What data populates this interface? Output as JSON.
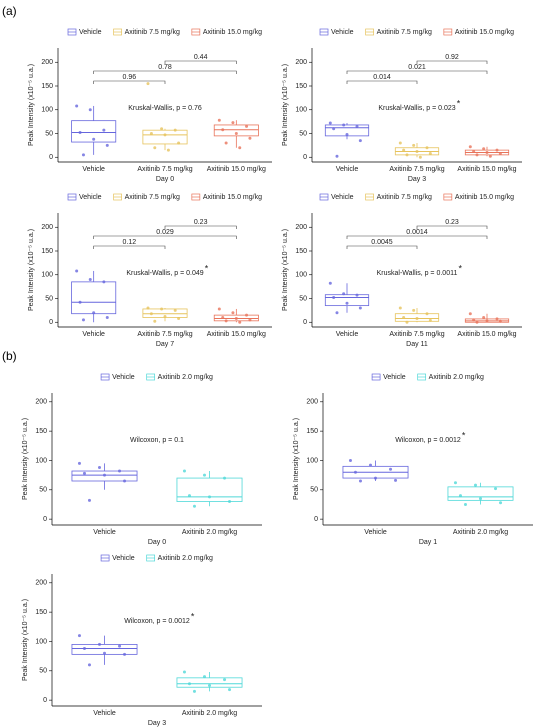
{
  "figure": {
    "parts": [
      "(a)",
      "(b)"
    ]
  },
  "chart_data": [
    {
      "type": "box",
      "x_label": "Day 0",
      "y_label": "Peak Intensity (x10⁻⁵ u.a.)",
      "ylim": [
        -10,
        230
      ],
      "yticks": [
        0,
        50,
        100,
        150,
        200
      ],
      "series": [
        {
          "name": "Vehicle",
          "color": "#6666dd",
          "box": [
            5,
            32,
            52,
            77,
            108
          ],
          "points": [
            108,
            100,
            57,
            52,
            38,
            25,
            5
          ]
        },
        {
          "name": "Axitinib 7.5 mg/kg",
          "color": "#e6c35c",
          "box": [
            15,
            28,
            47,
            57,
            60
          ],
          "points": [
            155,
            60,
            57,
            50,
            47,
            30,
            20,
            15
          ]
        },
        {
          "name": "Axitinib 15.0 mg/kg",
          "color": "#e8735a",
          "box": [
            20,
            45,
            58,
            68,
            78
          ],
          "points": [
            78,
            73,
            65,
            58,
            50,
            40,
            30,
            20
          ]
        }
      ],
      "test": "Kruskal-Wallis, p = 0.76",
      "comparisons": [
        "0.96",
        "0.78",
        "0.44"
      ]
    },
    {
      "type": "box",
      "x_label": "Day 3",
      "y_label": "Peak Intensity (x10⁻⁵ u.a.)",
      "ylim": [
        -10,
        230
      ],
      "yticks": [
        0,
        50,
        100,
        150,
        200
      ],
      "series": [
        {
          "name": "Vehicle",
          "color": "#6666dd",
          "box": [
            38,
            45,
            62,
            68,
            72
          ],
          "points": [
            72,
            68,
            65,
            60,
            48,
            35,
            2
          ]
        },
        {
          "name": "Axitinib 7.5 mg/kg",
          "color": "#e6c35c",
          "box": [
            0,
            5,
            12,
            20,
            30
          ],
          "points": [
            30,
            25,
            20,
            15,
            12,
            8,
            5,
            0
          ]
        },
        {
          "name": "Axitinib 15.0 mg/kg",
          "color": "#e8735a",
          "box": [
            2,
            5,
            10,
            15,
            22
          ],
          "points": [
            22,
            18,
            15,
            12,
            10,
            8,
            5,
            2
          ]
        }
      ],
      "test": "Kruskal-Wallis, p = 0.023",
      "significance": "*",
      "comparisons": [
        "0.014",
        "0.021",
        "0.92"
      ]
    },
    {
      "type": "box",
      "x_label": "Day 7",
      "y_label": "Peak Intensity (x10⁻⁵ u.a.)",
      "ylim": [
        -10,
        230
      ],
      "yticks": [
        0,
        50,
        100,
        150,
        200
      ],
      "series": [
        {
          "name": "Vehicle",
          "color": "#6666dd",
          "box": [
            0,
            18,
            42,
            85,
            108
          ],
          "points": [
            108,
            90,
            85,
            42,
            20,
            10,
            5
          ]
        },
        {
          "name": "Axitinib 7.5 mg/kg",
          "color": "#e6c35c",
          "box": [
            2,
            10,
            18,
            28,
            30
          ],
          "points": [
            30,
            28,
            25,
            18,
            12,
            8,
            2
          ]
        },
        {
          "name": "Axitinib 15.0 mg/kg",
          "color": "#e8735a",
          "box": [
            0,
            3,
            8,
            15,
            28
          ],
          "points": [
            28,
            20,
            15,
            10,
            8,
            5,
            3,
            0
          ]
        }
      ],
      "test": "Kruskal-Wallis, p = 0.049",
      "significance": "*",
      "comparisons": [
        "0.12",
        "0.029",
        "0.23"
      ]
    },
    {
      "type": "box",
      "x_label": "Day 11",
      "y_label": "Peak Intensity (x10⁻⁵ u.a.)",
      "ylim": [
        -10,
        230
      ],
      "yticks": [
        0,
        50,
        100,
        150,
        200
      ],
      "series": [
        {
          "name": "Vehicle",
          "color": "#6666dd",
          "box": [
            20,
            35,
            52,
            58,
            82
          ],
          "points": [
            82,
            60,
            57,
            52,
            40,
            30,
            20
          ]
        },
        {
          "name": "Axitinib 7.5 mg/kg",
          "color": "#e6c35c",
          "box": [
            0,
            2,
            8,
            18,
            30
          ],
          "points": [
            30,
            25,
            18,
            10,
            8,
            4,
            0
          ]
        },
        {
          "name": "Axitinib 15.0 mg/kg",
          "color": "#e8735a",
          "box": [
            0,
            0,
            3,
            7,
            18
          ],
          "points": [
            18,
            10,
            7,
            5,
            3,
            2,
            0
          ]
        }
      ],
      "test": "Kruskal-Wallis, p = 0.0011",
      "significance": "*",
      "comparisons": [
        "0.0045",
        "0.0014",
        "0.23"
      ]
    },
    {
      "type": "box",
      "x_label": "Day 0",
      "y_label": "Peak Intensity (x10⁻⁵ u.a.)",
      "ylim": [
        -10,
        215
      ],
      "yticks": [
        0,
        50,
        100,
        150,
        200
      ],
      "series": [
        {
          "name": "Vehicle",
          "color": "#6666dd",
          "box": [
            50,
            65,
            75,
            82,
            95
          ],
          "points": [
            95,
            88,
            82,
            78,
            75,
            65,
            32
          ]
        },
        {
          "name": "Axitinib 2.0 mg/kg",
          "color": "#4fd8d8",
          "box": [
            22,
            30,
            38,
            70,
            82
          ],
          "points": [
            82,
            75,
            70,
            40,
            38,
            30,
            22
          ]
        }
      ],
      "test": "Wilcoxon, p = 0.1"
    },
    {
      "type": "box",
      "x_label": "Day 1",
      "y_label": "Peak Intensity (x10⁻⁵ u.a.)",
      "ylim": [
        -10,
        215
      ],
      "yticks": [
        0,
        50,
        100,
        150,
        200
      ],
      "series": [
        {
          "name": "Vehicle",
          "color": "#6666dd",
          "box": [
            65,
            70,
            80,
            90,
            100
          ],
          "points": [
            100,
            92,
            85,
            80,
            70,
            66,
            65
          ]
        },
        {
          "name": "Axitinib 2.0 mg/kg",
          "color": "#4fd8d8",
          "box": [
            25,
            32,
            38,
            55,
            62
          ],
          "points": [
            62,
            58,
            52,
            40,
            35,
            28,
            25
          ]
        }
      ],
      "test": "Wilcoxon, p = 0.0012",
      "significance": "*"
    },
    {
      "type": "box",
      "x_label": "Day 3",
      "y_label": "Peak Intensity (x10⁻⁵ u.a.)",
      "ylim": [
        -10,
        215
      ],
      "yticks": [
        0,
        50,
        100,
        150,
        200
      ],
      "series": [
        {
          "name": "Vehicle",
          "color": "#6666dd",
          "box": [
            60,
            78,
            88,
            95,
            110
          ],
          "points": [
            110,
            95,
            92,
            88,
            80,
            78,
            60
          ]
        },
        {
          "name": "Axitinib 2.0 mg/kg",
          "color": "#4fd8d8",
          "box": [
            15,
            22,
            28,
            38,
            48
          ],
          "points": [
            48,
            40,
            35,
            28,
            25,
            18,
            15
          ]
        }
      ],
      "test": "Wilcoxon, p = 0.0012",
      "significance": "*"
    }
  ]
}
